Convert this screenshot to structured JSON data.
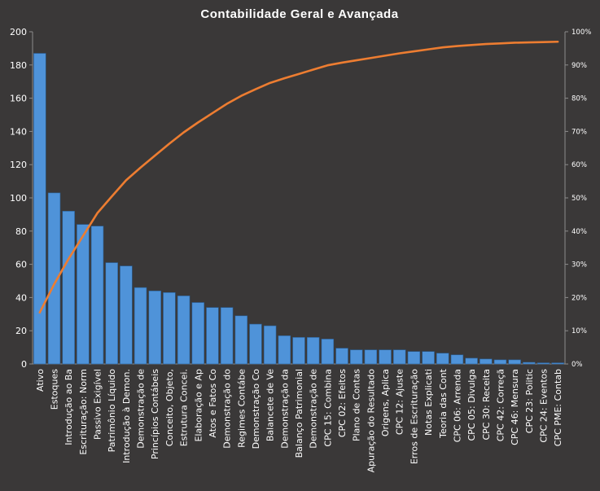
{
  "chart_data": {
    "type": "bar",
    "title": "Contabilidade  Geral e Avançada",
    "categories": [
      "Ativo",
      "Estoques",
      "Introdução ao Ba",
      "Escrituração: Norm",
      "Passivo Exigível",
      "Patrimônio Líquido",
      "Introdução à Demon.",
      "Demonstração de",
      "Princípios Contábeis",
      "Conceito, Objeto,",
      "Estrutura Concei.",
      "Elaboração e Ap",
      "Atos e Fatos Co",
      "Demonstração do",
      "Regimes Contábe",
      "Demonstração Co",
      "Balancete de Ve",
      "Demonstração da",
      "Balanço Patrimonial",
      "Demonstração de",
      "CPC 15: Combina",
      "CPC 02: Efeitos",
      "Plano de Contas",
      "Apuração do Resultado",
      "Origens, Aplica",
      "CPC 12: Ajuste",
      "Erros de Escrituração",
      "Notas Explicati",
      "Teoria das Cont",
      "CPC 06: Arrenda",
      "CPC 05: Divulga",
      "CPC 30: Receita",
      "CPC 42: Correçã",
      "CPC 46: Mensura",
      "CPC 23: Politic",
      "CPC 24: Eventos",
      "CPC PME: Contab"
    ],
    "series": [
      {
        "type": "bar",
        "axis": "left",
        "color": "#4f93d9",
        "values": [
          187,
          103,
          92,
          84,
          83,
          61,
          59,
          46,
          44,
          43,
          41,
          37,
          34,
          34,
          29,
          24,
          23,
          17,
          16,
          16,
          15,
          9.5,
          8.5,
          8.5,
          8.5,
          8.5,
          7.5,
          7.5,
          6.5,
          5.5,
          3.5,
          3,
          2.5,
          2.5,
          1,
          0.7,
          0.7
        ]
      },
      {
        "type": "line",
        "axis": "right",
        "color": "#ed7d31",
        "values": [
          15.5,
          24.0,
          31.6,
          38.5,
          45.4,
          50.4,
          55.3,
          59.1,
          62.7,
          66.3,
          69.7,
          72.7,
          75.5,
          78.3,
          80.7,
          82.7,
          84.6,
          86.0,
          87.3,
          88.6,
          89.9,
          90.7,
          91.4,
          92.1,
          92.8,
          93.5,
          94.1,
          94.7,
          95.3,
          95.7,
          96.0,
          96.3,
          96.5,
          96.7,
          96.8,
          96.9,
          97.0
        ]
      }
    ],
    "ylim": [
      0,
      200
    ],
    "yticks": [
      "0",
      "20",
      "40",
      "60",
      "80",
      "100",
      "120",
      "140",
      "160",
      "180",
      "200"
    ],
    "y2lim": [
      0,
      100
    ],
    "y2ticks": [
      "0%",
      "10%",
      "20%",
      "30%",
      "40%",
      "50%",
      "60%",
      "70%",
      "80%",
      "90%",
      "100%"
    ],
    "grid": false,
    "legend": "none"
  }
}
